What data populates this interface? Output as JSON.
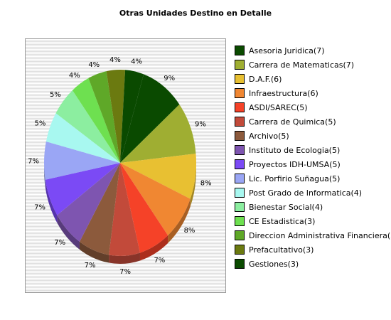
{
  "chart_data": {
    "type": "pie",
    "title": "Otras Unidades Destino en Detalle",
    "slices": [
      {
        "label": "Asesoria Juridica(7)",
        "value": 7,
        "percent_label": "9%",
        "color": "#0a4a00"
      },
      {
        "label": "Carrera de Matematicas(7)",
        "value": 7,
        "percent_label": "9%",
        "color": "#9fae32"
      },
      {
        "label": "D.A.F.(6)",
        "value": 6,
        "percent_label": "8%",
        "color": "#e8c032"
      },
      {
        "label": "Infraestructura(6)",
        "value": 6,
        "percent_label": "8%",
        "color": "#f08732"
      },
      {
        "label": "ASDI/SAREC(5)",
        "value": 5,
        "percent_label": "7%",
        "color": "#f54228"
      },
      {
        "label": "Carrera de Quimica(5)",
        "value": 5,
        "percent_label": "7%",
        "color": "#c24a3a"
      },
      {
        "label": "Archivo(5)",
        "value": 5,
        "percent_label": "7%",
        "color": "#8c5a3c"
      },
      {
        "label": "Instituto de Ecologia(5)",
        "value": 5,
        "percent_label": "7%",
        "color": "#7e55b0"
      },
      {
        "label": "Proyectos IDH-UMSA(5)",
        "value": 5,
        "percent_label": "7%",
        "color": "#7b4af5"
      },
      {
        "label": "Lic. Porfirio Suñagua(5)",
        "value": 5,
        "percent_label": "7%",
        "color": "#9aa6f5"
      },
      {
        "label": "Post Grado de Informatica(4)",
        "value": 4,
        "percent_label": "5%",
        "color": "#a8f8f0"
      },
      {
        "label": "Bienestar Social(4)",
        "value": 4,
        "percent_label": "5%",
        "color": "#8ceea0"
      },
      {
        "label": "CE Estadistica(3)",
        "value": 3,
        "percent_label": "4%",
        "color": "#6ee050"
      },
      {
        "label": "Direccion Administrativa Financiera(3)",
        "value": 3,
        "percent_label": "4%",
        "color": "#5fa828"
      },
      {
        "label": "Prefacultativo(3)",
        "value": 3,
        "percent_label": "4%",
        "color": "#6b7a10"
      },
      {
        "label": "Gestiones(3)",
        "value": 3,
        "percent_label": "4%",
        "color": "#0a4a00"
      }
    ]
  }
}
